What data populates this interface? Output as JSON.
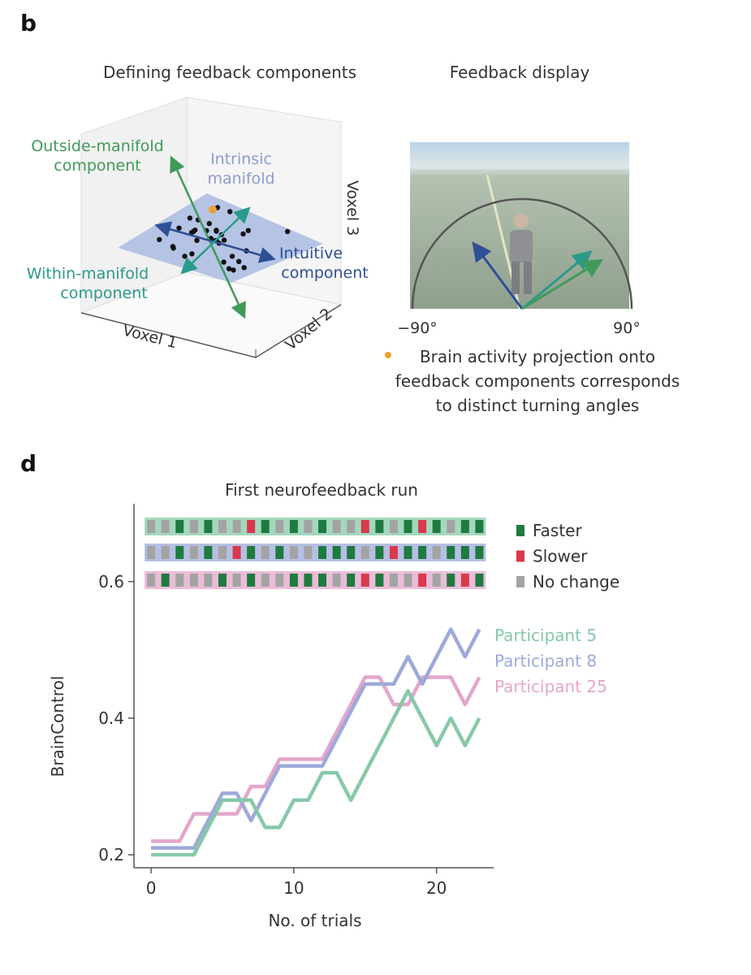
{
  "panel_b": {
    "label": "b",
    "title_left": "Defining feedback components",
    "title_right": "Feedback display",
    "outside_label": [
      "Outside-manifold",
      "component"
    ],
    "manifold_label": [
      "Intrinsic",
      "manifold"
    ],
    "within_label": [
      "Within-manifold",
      "component"
    ],
    "intuitive_label": [
      "Intuitive",
      "component"
    ],
    "axis_labels": [
      "Voxel 1",
      "Voxel 2",
      "Voxel 3"
    ],
    "angle_left": "−90°",
    "angle_right": "90°",
    "caption": [
      "Brain activity projection onto",
      "feedback components corresponds",
      "to distinct turning angles"
    ]
  },
  "panel_d": {
    "label": "d"
  },
  "chart_data": {
    "type": "line",
    "title": "First neurofeedback run",
    "x_label": "No. of trials",
    "y_label": "BrainControl",
    "x": [
      0,
      1,
      2,
      3,
      4,
      5,
      6,
      7,
      8,
      9,
      10,
      11,
      12,
      13,
      14,
      15,
      16,
      17,
      18,
      19,
      20,
      21,
      22,
      23
    ],
    "series": [
      {
        "name": "Participant 5",
        "color": "#86c9a8",
        "values": [
          0.2,
          0.2,
          0.2,
          0.2,
          0.24,
          0.28,
          0.28,
          0.28,
          0.24,
          0.24,
          0.28,
          0.28,
          0.32,
          0.32,
          0.28,
          0.32,
          0.36,
          0.4,
          0.44,
          0.4,
          0.36,
          0.4,
          0.36,
          0.4
        ]
      },
      {
        "name": "Participant 8",
        "color": "#9ea9da",
        "values": [
          0.21,
          0.21,
          0.21,
          0.21,
          0.25,
          0.29,
          0.29,
          0.25,
          0.29,
          0.33,
          0.33,
          0.33,
          0.33,
          0.37,
          0.41,
          0.45,
          0.45,
          0.45,
          0.49,
          0.45,
          0.49,
          0.53,
          0.49,
          0.53
        ]
      },
      {
        "name": "Participant 25",
        "color": "#e3a6cb",
        "values": [
          0.22,
          0.22,
          0.22,
          0.26,
          0.26,
          0.26,
          0.26,
          0.3,
          0.3,
          0.34,
          0.34,
          0.34,
          0.34,
          0.38,
          0.42,
          0.46,
          0.46,
          0.42,
          0.42,
          0.46,
          0.46,
          0.46,
          0.42,
          0.46
        ]
      }
    ],
    "outcomes": [
      {
        "name": "Faster",
        "color": "#1f7a3f"
      },
      {
        "name": "Slower",
        "color": "#d8394b"
      },
      {
        "name": "No change",
        "color": "#a3a3a3"
      }
    ],
    "trial_outcomes": [
      [
        2,
        2,
        0,
        2,
        0,
        2,
        2,
        1,
        0,
        2,
        0,
        2,
        0,
        2,
        2,
        1,
        0,
        2,
        0,
        1,
        0,
        2,
        0,
        0
      ],
      [
        2,
        2,
        0,
        2,
        0,
        2,
        1,
        0,
        2,
        0,
        2,
        2,
        0,
        0,
        0,
        2,
        0,
        1,
        0,
        0,
        2,
        0,
        0,
        0
      ],
      [
        2,
        0,
        2,
        2,
        2,
        0,
        2,
        0,
        2,
        2,
        0,
        0,
        0,
        2,
        0,
        1,
        0,
        2,
        2,
        1,
        2,
        0,
        1,
        0
      ]
    ],
    "xlim": [
      -1.2,
      24
    ],
    "ylim": [
      0.181,
      0.714
    ],
    "xticks": [
      0,
      10,
      20
    ],
    "yticks": [
      0.2,
      0.4,
      0.6
    ]
  }
}
